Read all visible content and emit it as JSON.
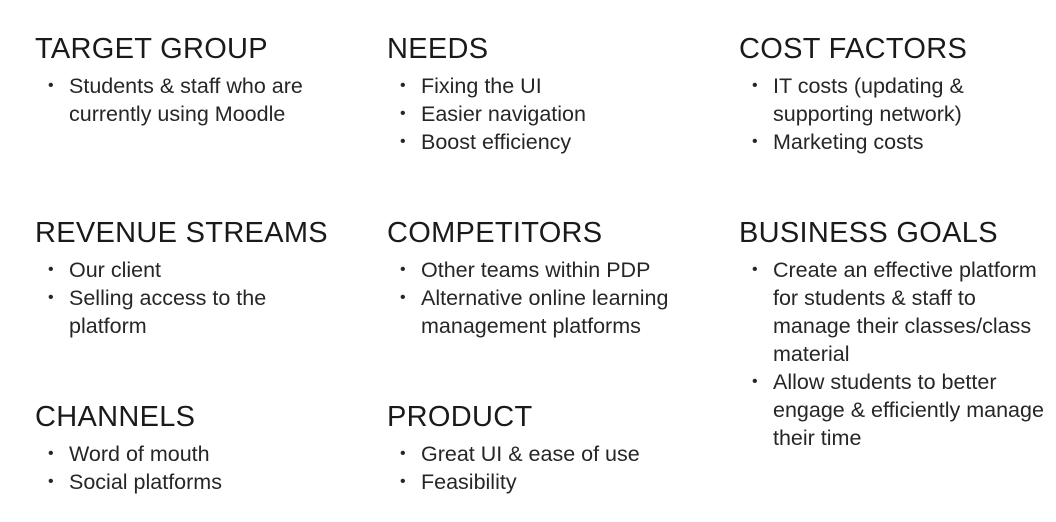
{
  "target_group": {
    "title": "TARGET GROUP",
    "items": [
      "Students & staff who are currently using Moodle"
    ]
  },
  "needs": {
    "title": "NEEDS",
    "items": [
      "Fixing the UI",
      "Easier navigation",
      "Boost efficiency"
    ]
  },
  "cost_factors": {
    "title": "COST FACTORS",
    "items": [
      "IT costs (updating & supporting network)",
      "Marketing costs"
    ]
  },
  "revenue_streams": {
    "title": "REVENUE STREAMS",
    "items": [
      "Our client",
      "Selling access to the platform"
    ]
  },
  "competitors": {
    "title": "COMPETITORS",
    "items": [
      "Other teams within PDP",
      "Alternative online learning management platforms"
    ]
  },
  "business_goals": {
    "title": "BUSINESS GOALS",
    "items": [
      "Create an effective platform for students & staff to manage their classes/class material",
      "Allow students to better engage & efficiently manage their time"
    ]
  },
  "channels": {
    "title": "CHANNELS",
    "items": [
      "Word of mouth",
      "Social platforms"
    ]
  },
  "product": {
    "title": "PRODUCT",
    "items": [
      "Great UI & ease of use",
      "Feasibility"
    ]
  },
  "bullet_glyph": "•"
}
